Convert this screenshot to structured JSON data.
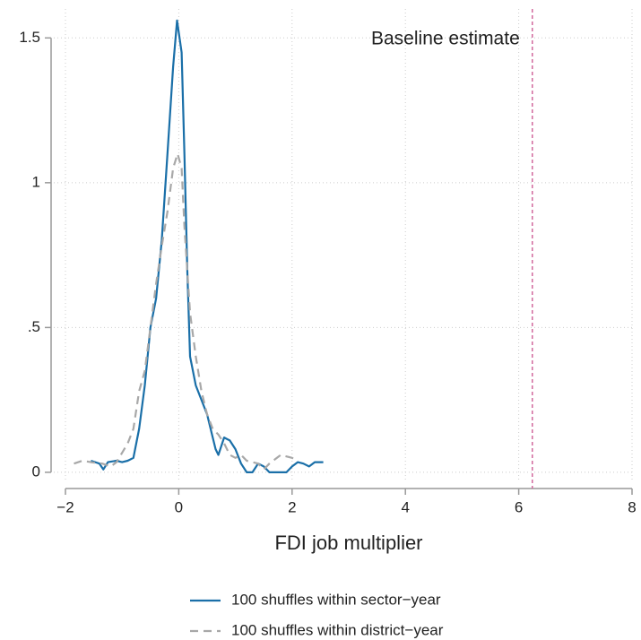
{
  "chart_data": {
    "type": "line",
    "x_label": "FDI job multiplier",
    "xlim": [
      -2,
      8
    ],
    "ylim": [
      -0.056,
      1.6
    ],
    "xticks": [
      {
        "value": -2,
        "label": "−2"
      },
      0,
      2,
      4,
      6,
      8
    ],
    "yticks": [
      0,
      {
        "value": 0.5,
        "label": ".5"
      },
      1,
      1.5
    ],
    "grid": true,
    "legend": "bottom",
    "reference_line": {
      "x": 6.24,
      "color": "#d2689c",
      "label": "Baseline estimate"
    },
    "series": [
      {
        "name": "100 shuffles within sector−year",
        "color": "#1a6fa8",
        "dash": "solid",
        "x": [
          -1.55,
          -1.4,
          -1.33,
          -1.25,
          -1.1,
          -1.0,
          -0.9,
          -0.8,
          -0.7,
          -0.6,
          -0.5,
          -0.4,
          -0.3,
          -0.2,
          -0.1,
          -0.03,
          0.05,
          0.1,
          0.15,
          0.2,
          0.3,
          0.4,
          0.5,
          0.6,
          0.65,
          0.7,
          0.75,
          0.8,
          0.9,
          1.0,
          1.1,
          1.2,
          1.3,
          1.4,
          1.5,
          1.6,
          1.7,
          1.9,
          2.0,
          2.1,
          2.2,
          2.3,
          2.4,
          2.55
        ],
        "values": [
          0.04,
          0.03,
          0.01,
          0.035,
          0.04,
          0.035,
          0.04,
          0.05,
          0.15,
          0.3,
          0.5,
          0.6,
          0.8,
          1.1,
          1.4,
          1.56,
          1.45,
          1.1,
          0.7,
          0.4,
          0.3,
          0.25,
          0.2,
          0.12,
          0.08,
          0.06,
          0.09,
          0.12,
          0.11,
          0.08,
          0.03,
          0.0,
          0.0,
          0.03,
          0.02,
          0.0,
          0.0,
          0.0,
          0.02,
          0.035,
          0.03,
          0.02,
          0.035,
          0.035
        ]
      },
      {
        "name": "100 shuffles within district−year",
        "color": "#a8a8a8",
        "dash": "dashed",
        "x": [
          -1.85,
          -1.7,
          -1.55,
          -1.35,
          -1.2,
          -1.1,
          -0.9,
          -0.8,
          -0.7,
          -0.6,
          -0.5,
          -0.4,
          -0.3,
          -0.2,
          -0.1,
          -0.02,
          0.05,
          0.1,
          0.2,
          0.3,
          0.4,
          0.5,
          0.6,
          0.7,
          0.8,
          0.9,
          1.0,
          1.1,
          1.2,
          1.4,
          1.5,
          1.6,
          1.8,
          2.0,
          2.1
        ],
        "values": [
          0.03,
          0.04,
          0.035,
          0.03,
          0.02,
          0.035,
          0.1,
          0.15,
          0.28,
          0.35,
          0.5,
          0.65,
          0.78,
          0.9,
          1.05,
          1.1,
          1.05,
          0.85,
          0.55,
          0.4,
          0.28,
          0.2,
          0.15,
          0.13,
          0.1,
          0.06,
          0.05,
          0.06,
          0.04,
          0.03,
          0.01,
          0.03,
          0.06,
          0.05,
          0.04
        ]
      }
    ]
  }
}
